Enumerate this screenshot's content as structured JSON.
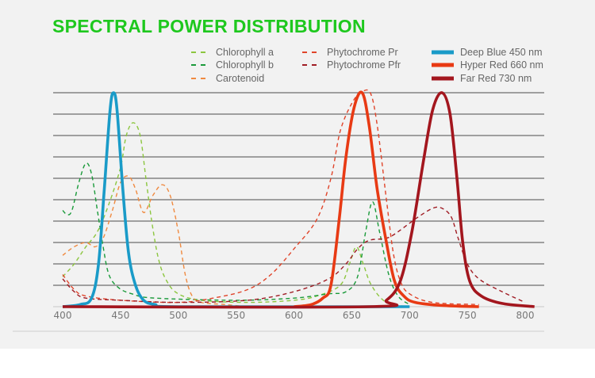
{
  "chart_data": {
    "type": "line",
    "title": "SPECTRAL POWER DISTRIBUTION",
    "xlabel": "",
    "ylabel": "",
    "xlim": [
      400,
      800
    ],
    "ylim": [
      0,
      1
    ],
    "x_ticks": [
      "400",
      "450",
      "500",
      "550",
      "600",
      "650",
      "700",
      "750",
      "800"
    ],
    "grid": "horizontal",
    "legend_position": "top-right",
    "series": [
      {
        "name": "Chlorophyll a",
        "color": "#8cc63f",
        "style": "dashed",
        "points": [
          [
            400,
            0.14
          ],
          [
            410,
            0.2
          ],
          [
            420,
            0.28
          ],
          [
            430,
            0.35
          ],
          [
            440,
            0.48
          ],
          [
            450,
            0.65
          ],
          [
            455,
            0.8
          ],
          [
            461,
            0.86
          ],
          [
            467,
            0.8
          ],
          [
            472,
            0.6
          ],
          [
            477,
            0.4
          ],
          [
            483,
            0.22
          ],
          [
            490,
            0.12
          ],
          [
            500,
            0.06
          ],
          [
            520,
            0.03
          ],
          [
            560,
            0.02
          ],
          [
            600,
            0.03
          ],
          [
            620,
            0.05
          ],
          [
            640,
            0.1
          ],
          [
            648,
            0.2
          ],
          [
            654,
            0.28
          ],
          [
            660,
            0.2
          ],
          [
            667,
            0.1
          ],
          [
            680,
            0.02
          ],
          [
            700,
            0.0
          ]
        ]
      },
      {
        "name": "Chlorophyll b",
        "color": "#1a9a3a",
        "style": "dashed",
        "points": [
          [
            400,
            0.45
          ],
          [
            404,
            0.43
          ],
          [
            408,
            0.45
          ],
          [
            414,
            0.58
          ],
          [
            420,
            0.67
          ],
          [
            425,
            0.62
          ],
          [
            430,
            0.45
          ],
          [
            435,
            0.28
          ],
          [
            440,
            0.15
          ],
          [
            448,
            0.09
          ],
          [
            460,
            0.06
          ],
          [
            480,
            0.04
          ],
          [
            550,
            0.03
          ],
          [
            600,
            0.04
          ],
          [
            630,
            0.06
          ],
          [
            645,
            0.07
          ],
          [
            655,
            0.14
          ],
          [
            662,
            0.35
          ],
          [
            668,
            0.49
          ],
          [
            674,
            0.35
          ],
          [
            682,
            0.15
          ],
          [
            690,
            0.05
          ],
          [
            700,
            0.01
          ]
        ]
      },
      {
        "name": "Carotenoid",
        "color": "#f08a40",
        "style": "dashed",
        "points": [
          [
            400,
            0.24
          ],
          [
            410,
            0.28
          ],
          [
            420,
            0.3
          ],
          [
            428,
            0.28
          ],
          [
            435,
            0.32
          ],
          [
            443,
            0.45
          ],
          [
            450,
            0.58
          ],
          [
            457,
            0.61
          ],
          [
            463,
            0.55
          ],
          [
            470,
            0.44
          ],
          [
            478,
            0.52
          ],
          [
            486,
            0.57
          ],
          [
            493,
            0.52
          ],
          [
            500,
            0.35
          ],
          [
            506,
            0.15
          ],
          [
            512,
            0.05
          ],
          [
            520,
            0.02
          ],
          [
            540,
            0.01
          ],
          [
            560,
            0.0
          ]
        ]
      },
      {
        "name": "Phytochrome Pr",
        "color": "#e0442a",
        "style": "dashed",
        "points": [
          [
            400,
            0.15
          ],
          [
            410,
            0.08
          ],
          [
            420,
            0.05
          ],
          [
            450,
            0.03
          ],
          [
            500,
            0.02
          ],
          [
            530,
            0.04
          ],
          [
            560,
            0.08
          ],
          [
            580,
            0.15
          ],
          [
            600,
            0.27
          ],
          [
            620,
            0.41
          ],
          [
            632,
            0.6
          ],
          [
            640,
            0.82
          ],
          [
            650,
            0.95
          ],
          [
            658,
            1.0
          ],
          [
            666,
            1.0
          ],
          [
            672,
            0.85
          ],
          [
            680,
            0.5
          ],
          [
            686,
            0.25
          ],
          [
            692,
            0.12
          ],
          [
            700,
            0.06
          ],
          [
            720,
            0.02
          ],
          [
            760,
            0.01
          ]
        ]
      },
      {
        "name": "Phytochrome Pfr",
        "color": "#a01c24",
        "style": "dashed",
        "points": [
          [
            400,
            0.13
          ],
          [
            410,
            0.07
          ],
          [
            420,
            0.04
          ],
          [
            450,
            0.03
          ],
          [
            500,
            0.02
          ],
          [
            560,
            0.03
          ],
          [
            600,
            0.07
          ],
          [
            630,
            0.13
          ],
          [
            645,
            0.2
          ],
          [
            655,
            0.27
          ],
          [
            665,
            0.31
          ],
          [
            680,
            0.32
          ],
          [
            690,
            0.35
          ],
          [
            705,
            0.41
          ],
          [
            720,
            0.46
          ],
          [
            728,
            0.46
          ],
          [
            736,
            0.42
          ],
          [
            742,
            0.32
          ],
          [
            750,
            0.2
          ],
          [
            760,
            0.13
          ],
          [
            780,
            0.07
          ],
          [
            800,
            0.02
          ]
        ]
      },
      {
        "name": "Deep Blue 450 nm",
        "color": "#1a9bc8",
        "style": "solid",
        "points": [
          [
            400,
            0.0
          ],
          [
            415,
            0.01
          ],
          [
            425,
            0.04
          ],
          [
            431,
            0.2
          ],
          [
            436,
            0.55
          ],
          [
            441,
            0.92
          ],
          [
            444,
            1.0
          ],
          [
            447,
            0.92
          ],
          [
            452,
            0.55
          ],
          [
            457,
            0.25
          ],
          [
            463,
            0.1
          ],
          [
            470,
            0.03
          ],
          [
            480,
            0.01
          ],
          [
            500,
            0.0
          ],
          [
            700,
            0.0
          ]
        ]
      },
      {
        "name": "Hyper Red 660 nm",
        "color": "#e83a14",
        "style": "solid",
        "points": [
          [
            600,
            0.0
          ],
          [
            615,
            0.01
          ],
          [
            625,
            0.04
          ],
          [
            632,
            0.1
          ],
          [
            639,
            0.4
          ],
          [
            645,
            0.7
          ],
          [
            652,
            0.93
          ],
          [
            659,
            1.0
          ],
          [
            665,
            0.85
          ],
          [
            672,
            0.55
          ],
          [
            680,
            0.3
          ],
          [
            687,
            0.12
          ],
          [
            695,
            0.05
          ],
          [
            705,
            0.02
          ],
          [
            730,
            0.005
          ],
          [
            760,
            0.0
          ]
        ]
      },
      {
        "name": "Far Red 730 nm",
        "color": "#a3161e",
        "style": "solid",
        "points": [
          [
            400,
            0.0
          ],
          [
            665,
            0.0
          ],
          [
            680,
            0.03
          ],
          [
            692,
            0.12
          ],
          [
            702,
            0.35
          ],
          [
            712,
            0.68
          ],
          [
            720,
            0.92
          ],
          [
            728,
            1.0
          ],
          [
            735,
            0.9
          ],
          [
            741,
            0.6
          ],
          [
            746,
            0.3
          ],
          [
            752,
            0.12
          ],
          [
            762,
            0.05
          ],
          [
            780,
            0.015
          ],
          [
            808,
            0.0
          ]
        ]
      }
    ]
  }
}
